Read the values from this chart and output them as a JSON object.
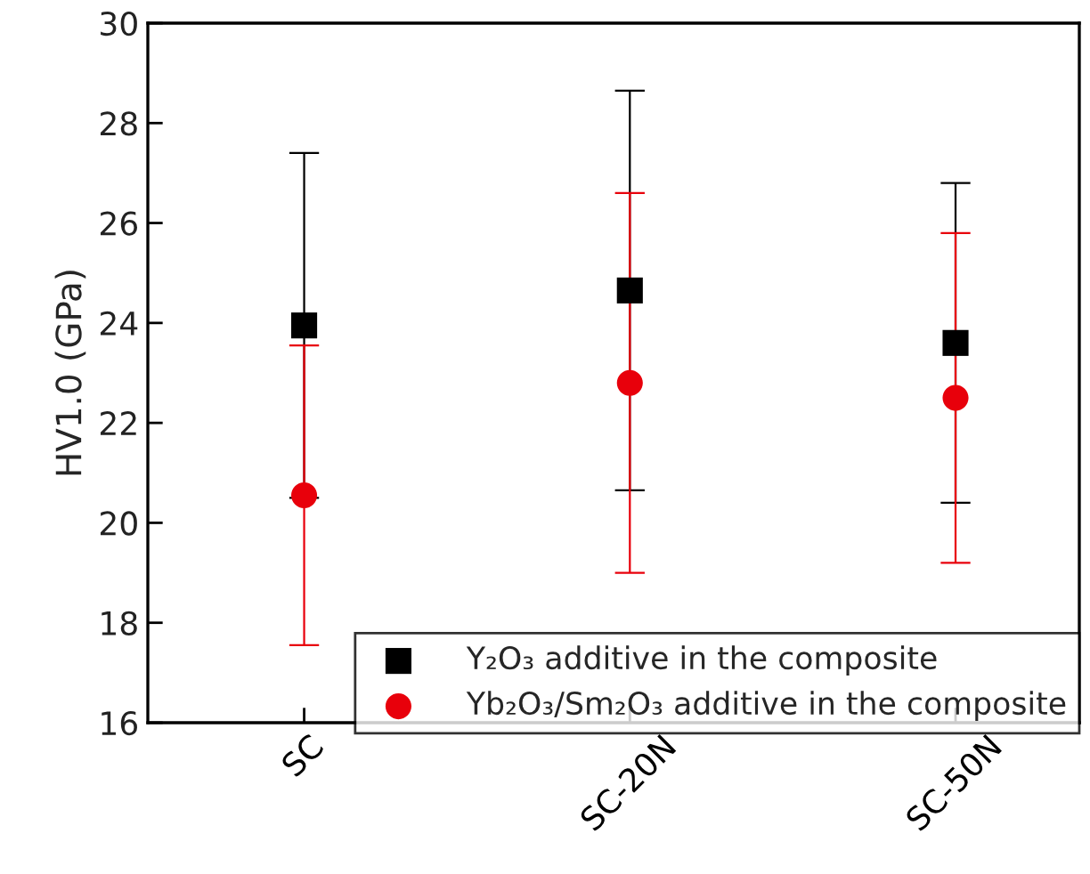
{
  "chart_data": {
    "type": "scatter",
    "ylabel": "HV1.0 (GPa)",
    "categories": [
      "SC",
      "SC-20N",
      "SC-50N"
    ],
    "series": [
      {
        "name": "Y₂O₃ additive in the composite",
        "color": "#000000",
        "marker": "square",
        "values": [
          23.95,
          24.65,
          23.6
        ],
        "errors": [
          3.45,
          4.0,
          3.2
        ]
      },
      {
        "name": "Yb₂O₃/Sm₂O₃ additive in the composite",
        "color": "#e8000b",
        "marker": "circle",
        "values": [
          20.55,
          22.8,
          22.5
        ],
        "errors": [
          3.0,
          3.8,
          3.3
        ]
      }
    ],
    "ylim": [
      16,
      30
    ],
    "yticks": [
      16,
      18,
      20,
      22,
      24,
      26,
      28,
      30
    ],
    "grid": false,
    "legend": "bottom right"
  }
}
